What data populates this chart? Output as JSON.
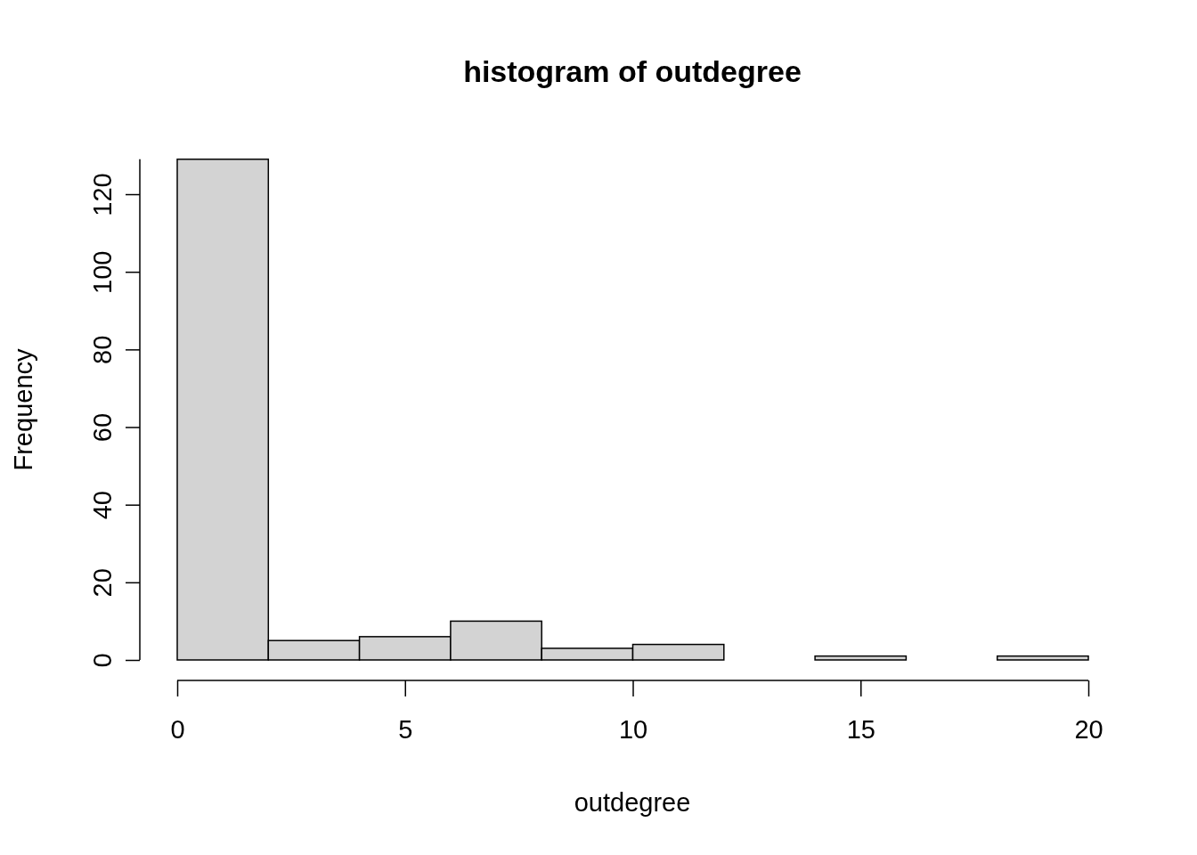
{
  "chart_data": {
    "type": "histogram",
    "title": "histogram of outdegree",
    "xlabel": "outdegree",
    "ylabel": "Frequency",
    "bins": [
      0,
      2,
      4,
      6,
      8,
      10,
      12,
      14,
      16,
      18,
      20
    ],
    "values": [
      129,
      5,
      6,
      10,
      3,
      4,
      0,
      1,
      0,
      1
    ],
    "color": "#d3d3d3",
    "xlim": [
      0,
      20
    ],
    "xticks": [
      0,
      5,
      10,
      15,
      20
    ],
    "ylim": [
      0,
      129
    ],
    "yticks": [
      0,
      20,
      40,
      60,
      80,
      100,
      120
    ],
    "grid": false,
    "legend": false
  }
}
